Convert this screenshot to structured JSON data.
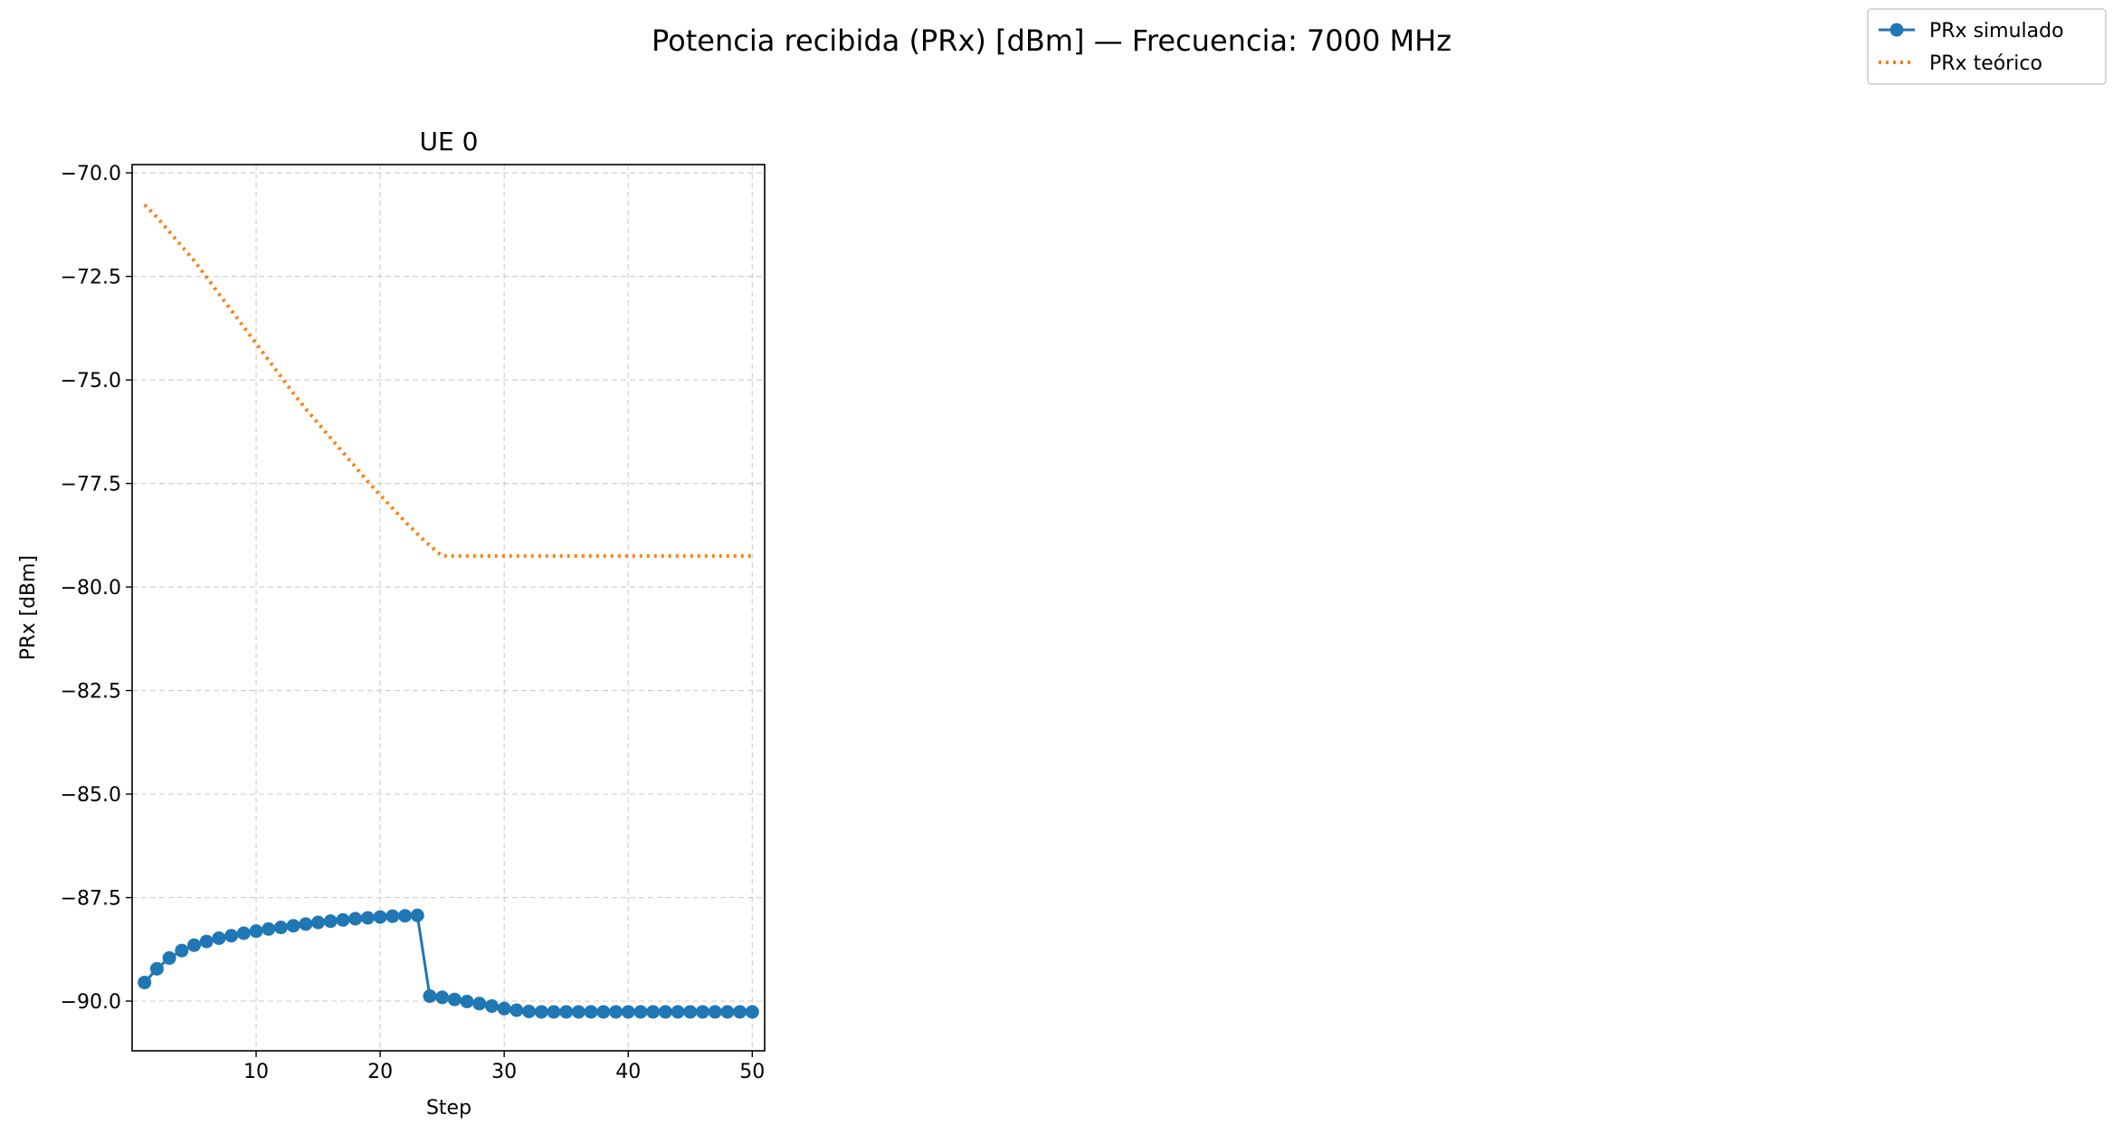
{
  "suptitle": "Potencia recibida (PRx) [dBm] — Frecuencia: 7000 MHz",
  "legend": {
    "placement": "top-right",
    "entries": [
      {
        "label": "PRx simulado",
        "color": "#1f77b4",
        "style": "solid-marker"
      },
      {
        "label": "PRx teórico",
        "color": "#ff7f0e",
        "style": "dotted"
      }
    ]
  },
  "chart_data": {
    "type": "line",
    "title": "UE 0",
    "xlabel": "Step",
    "ylabel": "PRx [dBm]",
    "xlim": [
      0,
      51
    ],
    "ylim": [
      -91.2,
      -69.8
    ],
    "xticks": [
      10,
      20,
      30,
      40,
      50
    ],
    "xtick_labels": [
      "10",
      "20",
      "30",
      "40",
      "50"
    ],
    "yticks": [
      -70.0,
      -72.5,
      -75.0,
      -77.5,
      -80.0,
      -82.5,
      -85.0,
      -87.5,
      -90.0
    ],
    "ytick_labels": [
      "−70.0",
      "−72.5",
      "−75.0",
      "−77.5",
      "−80.0",
      "−82.5",
      "−85.0",
      "−87.5",
      "−90.0"
    ],
    "grid": true,
    "x": [
      1,
      2,
      3,
      4,
      5,
      6,
      7,
      8,
      9,
      10,
      11,
      12,
      13,
      14,
      15,
      16,
      17,
      18,
      19,
      20,
      21,
      22,
      23,
      24,
      25,
      26,
      27,
      28,
      29,
      30,
      31,
      32,
      33,
      34,
      35,
      36,
      37,
      38,
      39,
      40,
      41,
      42,
      43,
      44,
      45,
      46,
      47,
      48,
      49,
      50
    ],
    "series": [
      {
        "name": "PRx simulado",
        "color": "#1f77b4",
        "style": "solid-marker",
        "values": [
          -89.55,
          -89.22,
          -88.96,
          -88.78,
          -88.65,
          -88.56,
          -88.48,
          -88.42,
          -88.36,
          -88.31,
          -88.26,
          -88.22,
          -88.18,
          -88.14,
          -88.1,
          -88.07,
          -88.04,
          -88.01,
          -87.99,
          -87.97,
          -87.95,
          -87.94,
          -87.93,
          -89.88,
          -89.91,
          -89.96,
          -90.01,
          -90.06,
          -90.12,
          -90.18,
          -90.22,
          -90.25,
          -90.26,
          -90.26,
          -90.26,
          -90.26,
          -90.26,
          -90.26,
          -90.26,
          -90.26,
          -90.26,
          -90.26,
          -90.26,
          -90.26,
          -90.26,
          -90.26,
          -90.26,
          -90.26,
          -90.26,
          -90.26
        ]
      },
      {
        "name": "PRx teórico",
        "color": "#ff7f0e",
        "style": "dotted",
        "values": [
          -70.77,
          -71.07,
          -71.42,
          -71.77,
          -72.12,
          -72.52,
          -72.92,
          -73.32,
          -73.72,
          -74.12,
          -74.52,
          -74.92,
          -75.32,
          -75.7,
          -76.05,
          -76.4,
          -76.75,
          -77.1,
          -77.45,
          -77.78,
          -78.1,
          -78.42,
          -78.72,
          -79.0,
          -79.25,
          -79.25,
          -79.25,
          -79.25,
          -79.25,
          -79.25,
          -79.25,
          -79.25,
          -79.25,
          -79.25,
          -79.25,
          -79.25,
          -79.25,
          -79.25,
          -79.25,
          -79.25,
          -79.25,
          -79.25,
          -79.25,
          -79.25,
          -79.25,
          -79.25,
          -79.25,
          -79.25,
          -79.25,
          -79.25
        ]
      }
    ]
  }
}
